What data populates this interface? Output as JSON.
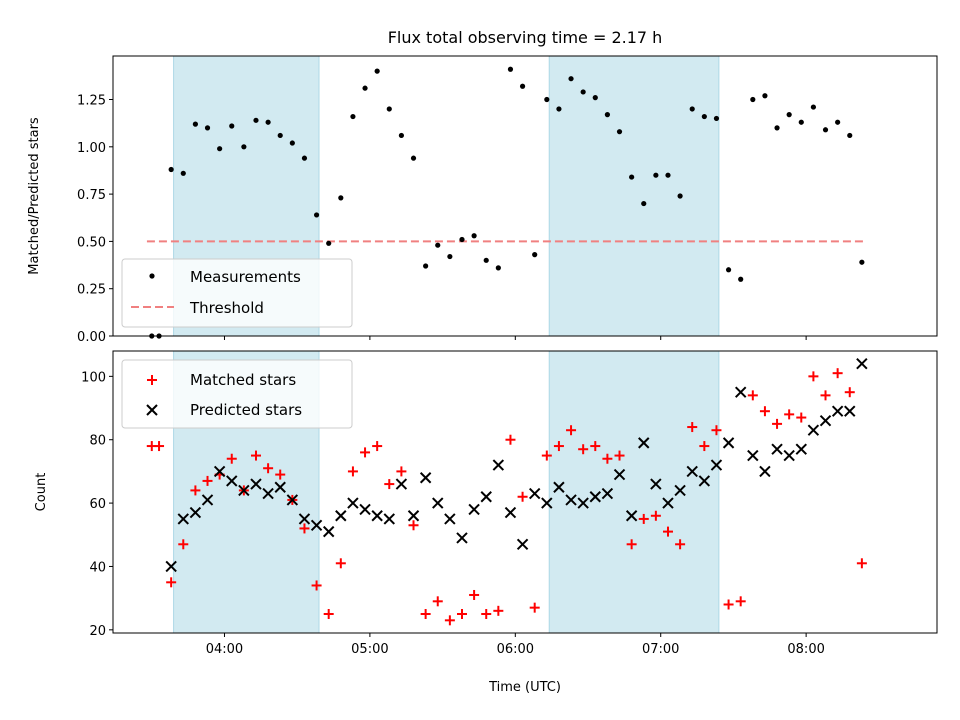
{
  "chart_data": [
    {
      "type": "scatter",
      "title": "Flux total observing time = 2.17 h",
      "xlabel": "",
      "ylabel": "Matched/Predicted stars",
      "xlim": [
        "03:14",
        "08:54"
      ],
      "ylim": [
        0,
        1.48
      ],
      "yticks": [
        0.0,
        0.25,
        0.5,
        0.75,
        1.0,
        1.25
      ],
      "ytick_labels": [
        "0.00",
        "0.25",
        "0.50",
        "0.75",
        "1.00",
        "1.25"
      ],
      "xticks": [
        "04:00",
        "05:00",
        "06:00",
        "07:00",
        "08:00"
      ],
      "show_xtick_labels": false,
      "grid": false,
      "legend": "lower-left",
      "legend_entries": [
        "Measurements",
        "Threshold"
      ],
      "shaded_intervals": [
        [
          "03:39",
          "04:39"
        ],
        [
          "06:14",
          "07:24"
        ]
      ],
      "shade_color": "#add8e6",
      "threshold": {
        "value": 0.5,
        "x_range": [
          "03:28",
          "08:24"
        ],
        "color": "#f08080"
      },
      "series": [
        {
          "name": "Measurements",
          "marker": "dot",
          "color": "#000000",
          "x": [
            "03:30",
            "03:33",
            "03:38",
            "03:43",
            "03:48",
            "03:53",
            "03:58",
            "04:03",
            "04:08",
            "04:13",
            "04:18",
            "04:23",
            "04:28",
            "04:33",
            "04:38",
            "04:43",
            "04:48",
            "04:53",
            "04:58",
            "05:03",
            "05:08",
            "05:13",
            "05:18",
            "05:23",
            "05:28",
            "05:33",
            "05:38",
            "05:43",
            "05:48",
            "05:53",
            "05:58",
            "06:03",
            "06:08",
            "06:13",
            "06:18",
            "06:23",
            "06:28",
            "06:33",
            "06:38",
            "06:43",
            "06:48",
            "06:53",
            "06:58",
            "07:03",
            "07:08",
            "07:13",
            "07:18",
            "07:23",
            "07:28",
            "07:33",
            "07:38",
            "07:43",
            "07:48",
            "07:53",
            "07:58",
            "08:03",
            "08:08",
            "08:13",
            "08:18",
            "08:23"
          ],
          "y": [
            0.0,
            0.0,
            0.88,
            0.86,
            1.12,
            1.1,
            0.99,
            1.11,
            1.0,
            1.14,
            1.13,
            1.06,
            1.02,
            0.94,
            0.64,
            0.49,
            0.73,
            1.16,
            1.31,
            1.4,
            1.2,
            1.06,
            0.94,
            0.37,
            0.48,
            0.42,
            0.51,
            0.53,
            0.4,
            0.36,
            1.41,
            1.32,
            0.43,
            1.25,
            1.2,
            1.36,
            1.29,
            1.26,
            1.17,
            1.08,
            0.84,
            0.7,
            0.85,
            0.85,
            0.74,
            1.2,
            1.16,
            1.15,
            0.35,
            0.3,
            1.25,
            1.27,
            1.1,
            1.17,
            1.13,
            1.21,
            1.09,
            1.13,
            1.06,
            0.39
          ]
        }
      ]
    },
    {
      "type": "scatter",
      "title": "",
      "xlabel": "Time (UTC)",
      "ylabel": "Count",
      "xlim": [
        "03:14",
        "08:54"
      ],
      "ylim": [
        19,
        108
      ],
      "yticks": [
        20,
        40,
        60,
        80,
        100
      ],
      "xticks": [
        "04:00",
        "05:00",
        "06:00",
        "07:00",
        "08:00"
      ],
      "grid": false,
      "legend": "top-left",
      "legend_entries": [
        "Matched stars",
        "Predicted stars"
      ],
      "shaded_intervals": [
        [
          "03:39",
          "04:39"
        ],
        [
          "06:14",
          "07:24"
        ]
      ],
      "shade_color": "#add8e6",
      "series": [
        {
          "name": "Matched stars",
          "marker": "plus",
          "color": "#ff0000",
          "x": [
            "03:30",
            "03:33",
            "03:38",
            "03:43",
            "03:48",
            "03:53",
            "03:58",
            "04:03",
            "04:08",
            "04:13",
            "04:18",
            "04:23",
            "04:28",
            "04:33",
            "04:38",
            "04:43",
            "04:48",
            "04:53",
            "04:58",
            "05:03",
            "05:08",
            "05:13",
            "05:18",
            "05:23",
            "05:28",
            "05:33",
            "05:38",
            "05:43",
            "05:48",
            "05:53",
            "05:58",
            "06:03",
            "06:08",
            "06:13",
            "06:18",
            "06:23",
            "06:28",
            "06:33",
            "06:38",
            "06:43",
            "06:48",
            "06:53",
            "06:58",
            "07:03",
            "07:08",
            "07:13",
            "07:18",
            "07:23",
            "07:28",
            "07:33",
            "07:38",
            "07:43",
            "07:48",
            "07:53",
            "07:58",
            "08:03",
            "08:08",
            "08:13",
            "08:18",
            "08:23"
          ],
          "y": [
            78,
            78,
            35,
            47,
            64,
            67,
            69,
            74,
            64,
            75,
            71,
            69,
            61,
            52,
            34,
            25,
            41,
            70,
            76,
            78,
            66,
            70,
            53,
            25,
            29,
            23,
            25,
            31,
            25,
            26,
            80,
            62,
            27,
            75,
            78,
            83,
            77,
            78,
            74,
            75,
            47,
            55,
            56,
            51,
            47,
            84,
            78,
            83,
            28,
            29,
            94,
            89,
            85,
            88,
            87,
            100,
            94,
            101,
            95,
            41
          ]
        },
        {
          "name": "Predicted stars",
          "marker": "x",
          "color": "#000000",
          "x": [
            "03:38",
            "03:43",
            "03:48",
            "03:53",
            "03:58",
            "04:03",
            "04:08",
            "04:13",
            "04:18",
            "04:23",
            "04:28",
            "04:33",
            "04:38",
            "04:43",
            "04:48",
            "04:53",
            "04:58",
            "05:03",
            "05:08",
            "05:13",
            "05:18",
            "05:23",
            "05:28",
            "05:33",
            "05:38",
            "05:43",
            "05:48",
            "05:53",
            "05:58",
            "06:03",
            "06:08",
            "06:13",
            "06:18",
            "06:23",
            "06:28",
            "06:33",
            "06:38",
            "06:43",
            "06:48",
            "06:53",
            "06:58",
            "07:03",
            "07:08",
            "07:13",
            "07:18",
            "07:23",
            "07:28",
            "07:33",
            "07:38",
            "07:43",
            "07:48",
            "07:53",
            "07:58",
            "08:03",
            "08:08",
            "08:13",
            "08:18",
            "08:23"
          ],
          "y": [
            40,
            55,
            57,
            61,
            70,
            67,
            64,
            66,
            63,
            65,
            61,
            55,
            53,
            51,
            56,
            60,
            58,
            56,
            55,
            66,
            56,
            68,
            60,
            55,
            49,
            58,
            62,
            72,
            57,
            47,
            63,
            60,
            65,
            61,
            60,
            62,
            63,
            69,
            56,
            79,
            66,
            60,
            64,
            70,
            67,
            72,
            79,
            95,
            75,
            70,
            77,
            75,
            77,
            83,
            86,
            89,
            89,
            104
          ]
        }
      ]
    }
  ]
}
